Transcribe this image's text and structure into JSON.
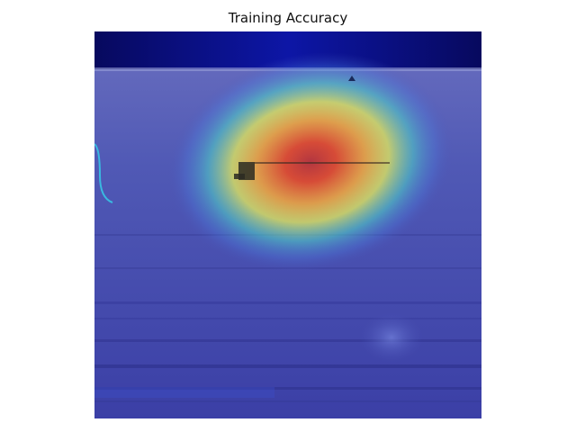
{
  "figure": {
    "title": "Training Accuracy"
  },
  "overlay": {
    "type": "saliency-heatmap",
    "colormap": "jet",
    "base_scene": "water-horizon-with-small-boat"
  },
  "colors": {
    "sky": "#0a0f72",
    "water": "#4a54b8",
    "heat_peak": "#d23a2a",
    "heat_mid": "#f2e94a",
    "heat_low": "#3ad1c8"
  }
}
